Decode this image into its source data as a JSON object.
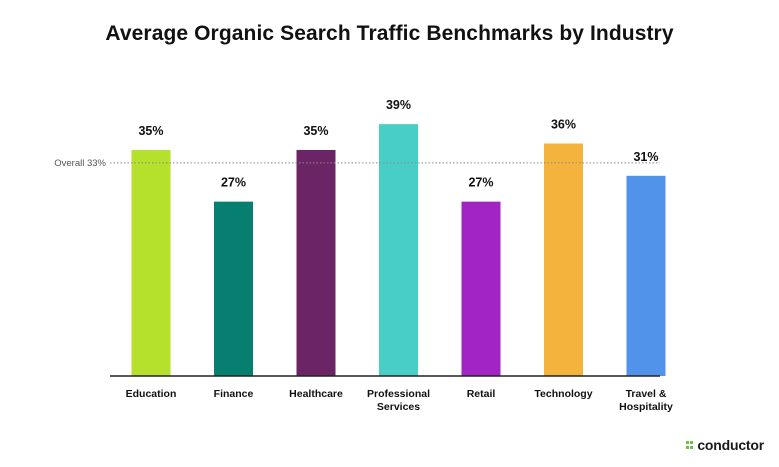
{
  "chart_data": {
    "type": "bar",
    "title": "Average Organic Search Traffic Benchmarks by Industry",
    "categories": [
      [
        "Education"
      ],
      [
        "Finance"
      ],
      [
        "Healthcare"
      ],
      [
        "Professional",
        "Services"
      ],
      [
        "Retail"
      ],
      [
        "Technology"
      ],
      [
        "Travel &",
        "Hospitality"
      ]
    ],
    "values": [
      35,
      27,
      35,
      39,
      27,
      36,
      31
    ],
    "value_labels": [
      "35%",
      "27%",
      "35%",
      "39%",
      "27%",
      "36%",
      "31%"
    ],
    "colors": [
      "#b5e02c",
      "#067f71",
      "#6b2567",
      "#48cec7",
      "#a125c2",
      "#f4b33d",
      "#5193ea"
    ],
    "ylim": [
      0,
      41.5
    ],
    "reference_line": {
      "value": 33,
      "label": "Overall 33%",
      "style": "dotted"
    },
    "grid": false,
    "legend": "none",
    "xlabel": "",
    "ylabel": ""
  },
  "brand": {
    "name": "conductor",
    "accent_color": "#6dbf3f"
  }
}
